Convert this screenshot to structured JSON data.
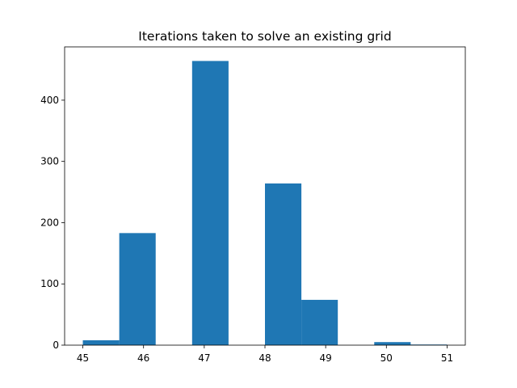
{
  "chart_data": {
    "type": "bar",
    "subtype": "histogram",
    "title": "Iterations taken to solve an existing grid",
    "xlabel": "",
    "ylabel": "",
    "xlim": [
      44.7,
      51.3
    ],
    "ylim": [
      0,
      487
    ],
    "bins": [
      {
        "x0": 45.0,
        "x1": 45.6,
        "count": 8
      },
      {
        "x0": 45.6,
        "x1": 46.2,
        "count": 183
      },
      {
        "x0": 46.2,
        "x1": 46.8,
        "count": 0
      },
      {
        "x0": 46.8,
        "x1": 47.4,
        "count": 464
      },
      {
        "x0": 47.4,
        "x1": 48.0,
        "count": 0
      },
      {
        "x0": 48.0,
        "x1": 48.6,
        "count": 264
      },
      {
        "x0": 48.6,
        "x1": 49.2,
        "count": 74
      },
      {
        "x0": 49.2,
        "x1": 49.8,
        "count": 0
      },
      {
        "x0": 49.8,
        "x1": 50.4,
        "count": 5
      },
      {
        "x0": 50.4,
        "x1": 51.0,
        "count": 1
      }
    ],
    "x_ticks": [
      "45",
      "46",
      "47",
      "48",
      "49",
      "50",
      "51"
    ],
    "y_ticks": [
      "0",
      "100",
      "200",
      "300",
      "400"
    ],
    "bar_color": "#1f77b4",
    "grid": false,
    "legend": "none"
  }
}
